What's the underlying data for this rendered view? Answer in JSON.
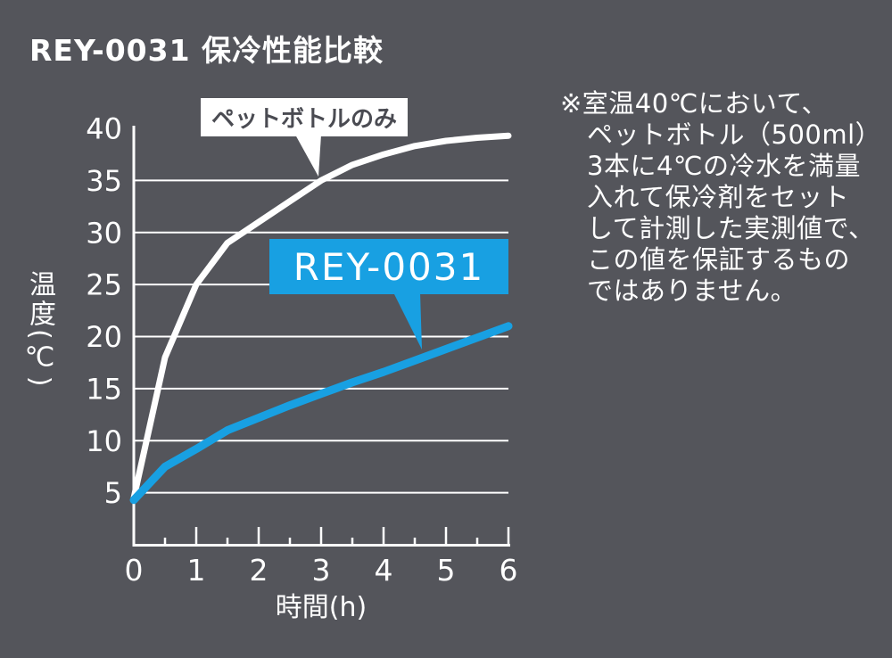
{
  "title": "REY-0031 保冷性能比較",
  "colors": {
    "background": "#54555B",
    "accent_blue": "#18A0E2",
    "axis_white": "#FFFFFF",
    "callout_text_gray": "#4A4B52"
  },
  "chart_data": {
    "type": "line",
    "title": "REY-0031 保冷性能比較",
    "xlabel": "時間(h)",
    "ylabel": "温度(℃)",
    "xlim": [
      0,
      6
    ],
    "ylim": [
      0,
      40
    ],
    "grid": "horizontal",
    "legend_position": "callouts-on-plot",
    "x": [
      0,
      0.5,
      1,
      1.5,
      2,
      2.5,
      3,
      3.5,
      4,
      4.5,
      5,
      5.5,
      6
    ],
    "series": [
      {
        "name": "ペットボトルのみ",
        "color": "#FFFFFF",
        "width": 7,
        "values": [
          4.5,
          18,
          25,
          29,
          31,
          33,
          35,
          36.5,
          37.5,
          38.3,
          38.8,
          39.1,
          39.3
        ]
      },
      {
        "name": "REY-0031",
        "color": "#18A0E2",
        "width": 9,
        "values": [
          4.3,
          7.5,
          9.2,
          11,
          12.2,
          13.4,
          14.5,
          15.6,
          16.6,
          17.7,
          18.8,
          19.9,
          21
        ]
      }
    ],
    "y_ticks": [
      40,
      35,
      30,
      25,
      20,
      15,
      10,
      5
    ],
    "x_ticks": [
      0,
      1,
      2,
      3,
      4,
      5,
      6
    ],
    "x_minor_tick_step": 0.5
  },
  "callouts": {
    "pet_bottle": {
      "label": "ペットボトルのみ"
    },
    "rey": {
      "label": "REY-0031"
    }
  },
  "note": {
    "lines": [
      "※室温40℃において、",
      "ペットボトル（500ml）",
      "3本に4℃の冷水を満量",
      "入れて保冷剤をセット",
      "して計測した実測値で、",
      "この値を保証するもの",
      "ではありません。"
    ]
  }
}
